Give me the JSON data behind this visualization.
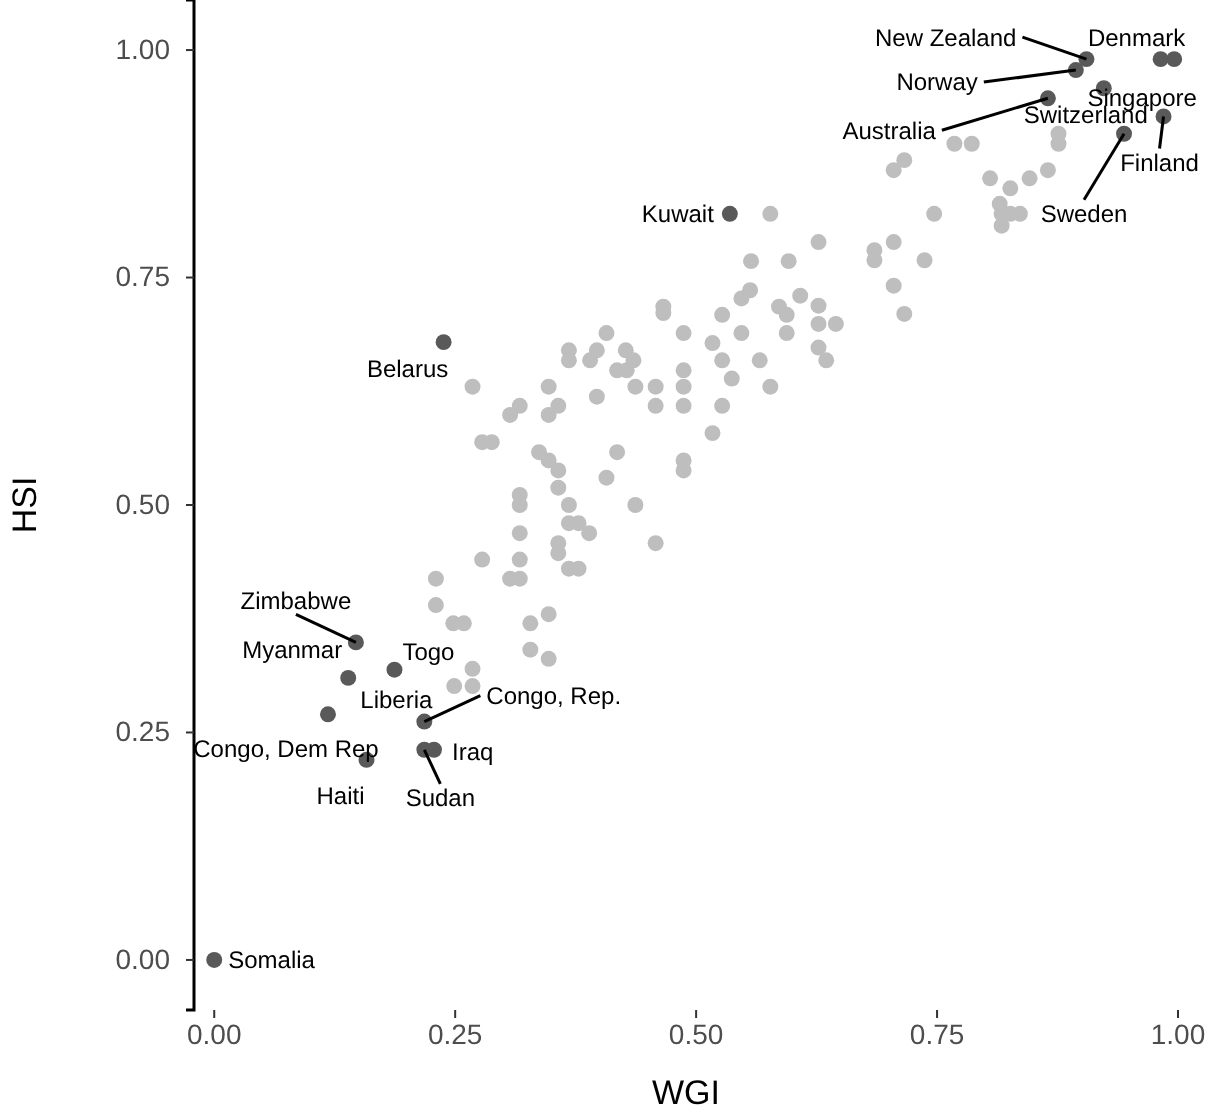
{
  "chart_data": {
    "type": "scatter",
    "xlabel": "WGI",
    "ylabel": "HSI",
    "xlim": [
      -0.021,
      1
    ],
    "ylim": [
      -0.055,
      1.055
    ],
    "xticks": [
      {
        "value": 0,
        "label": "0.00"
      },
      {
        "value": 0.25,
        "label": "0.25"
      },
      {
        "value": 0.5,
        "label": "0.50"
      },
      {
        "value": 0.75,
        "label": "0.75"
      },
      {
        "value": 1,
        "label": "1.00"
      }
    ],
    "yticks": [
      {
        "value": 0,
        "label": "0.00"
      },
      {
        "value": 0.25,
        "label": "0.25"
      },
      {
        "value": 0.5,
        "label": "0.50"
      },
      {
        "value": 0.75,
        "label": "0.75"
      },
      {
        "value": 1,
        "label": "1.00"
      }
    ],
    "grid": false,
    "marker": "circle",
    "series": [
      {
        "color": "#bebebe",
        "x": [
          0.557,
          0.596,
          0.556,
          0.547,
          0.466,
          0.466,
          0.586,
          0.594,
          0.527,
          0.407,
          0.487,
          0.517,
          0.547,
          0.594,
          0.368,
          0.368,
          0.397,
          0.39,
          0.427,
          0.435,
          0.418,
          0.428,
          0.527,
          0.566,
          0.487,
          0.537,
          0.268,
          0.347,
          0.437,
          0.458,
          0.487,
          0.577,
          0.317,
          0.307,
          0.357,
          0.347,
          0.397,
          0.458,
          0.487,
          0.527,
          0.278,
          0.288,
          0.517,
          0.337,
          0.347,
          0.357,
          0.418,
          0.487,
          0.487,
          0.317,
          0.317,
          0.357,
          0.407,
          0.368,
          0.437,
          0.368,
          0.378,
          0.389,
          0.317,
          0.357,
          0.357,
          0.458,
          0.278,
          0.317,
          0.307,
          0.317,
          0.368,
          0.378,
          0.23,
          0.23,
          0.248,
          0.259,
          0.328,
          0.347,
          0.328,
          0.347,
          0.268,
          0.249,
          0.268,
          0.768,
          0.786,
          0.876,
          0.876,
          0.716,
          0.705,
          0.805,
          0.826,
          0.846,
          0.865,
          0.815,
          0.817,
          0.826,
          0.836,
          0.817,
          0.747,
          0.577,
          0.627,
          0.685,
          0.685,
          0.705,
          0.737,
          0.705,
          0.716,
          0.608,
          0.627,
          0.627,
          0.645,
          0.627,
          0.635
        ],
        "values": [
          0.768,
          0.768,
          0.736,
          0.727,
          0.718,
          0.711,
          0.718,
          0.709,
          0.709,
          0.689,
          0.689,
          0.678,
          0.689,
          0.689,
          0.67,
          0.659,
          0.67,
          0.659,
          0.67,
          0.659,
          0.648,
          0.648,
          0.659,
          0.659,
          0.648,
          0.639,
          0.63,
          0.63,
          0.63,
          0.63,
          0.63,
          0.63,
          0.609,
          0.599,
          0.609,
          0.599,
          0.619,
          0.609,
          0.609,
          0.609,
          0.569,
          0.569,
          0.579,
          0.558,
          0.549,
          0.538,
          0.558,
          0.549,
          0.538,
          0.511,
          0.5,
          0.519,
          0.53,
          0.5,
          0.5,
          0.48,
          0.48,
          0.469,
          0.469,
          0.458,
          0.447,
          0.458,
          0.44,
          0.44,
          0.419,
          0.419,
          0.43,
          0.43,
          0.419,
          0.39,
          0.37,
          0.37,
          0.37,
          0.38,
          0.341,
          0.331,
          0.32,
          0.301,
          0.301,
          0.897,
          0.897,
          0.908,
          0.897,
          0.879,
          0.868,
          0.859,
          0.848,
          0.859,
          0.868,
          0.831,
          0.82,
          0.82,
          0.82,
          0.807,
          0.82,
          0.82,
          0.789,
          0.78,
          0.769,
          0.789,
          0.769,
          0.741,
          0.71,
          0.73,
          0.719,
          0.699,
          0.699,
          0.673,
          0.659
        ]
      },
      {
        "color": "#595959",
        "x": [
          0.905,
          0.982,
          0.996,
          0.894,
          0.923,
          0.865,
          0.985,
          0.944,
          0.535,
          0.238,
          0.147,
          0.187,
          0.139,
          0.118,
          0.218,
          0.218,
          0.228,
          0.158,
          0
        ],
        "values": [
          0.99,
          0.99,
          0.99,
          0.978,
          0.958,
          0.947,
          0.927,
          0.908,
          0.82,
          0.679,
          0.349,
          0.319,
          0.31,
          0.27,
          0.262,
          0.231,
          0.231,
          0.22,
          0
        ]
      }
    ],
    "annotations": [
      {
        "text": "New Zealand",
        "x": 0.905,
        "y": 0.99
      },
      {
        "text": "Denmark",
        "x": 0.982,
        "y": 0.99
      },
      {
        "text": "Singapore",
        "x": 0.996,
        "y": 0.99
      },
      {
        "text": "Norway",
        "x": 0.894,
        "y": 0.978
      },
      {
        "text": "Switzerland",
        "x": 0.923,
        "y": 0.958
      },
      {
        "text": "Australia",
        "x": 0.865,
        "y": 0.947
      },
      {
        "text": "Finland",
        "x": 0.985,
        "y": 0.927
      },
      {
        "text": "Sweden",
        "x": 0.944,
        "y": 0.908
      },
      {
        "text": "Kuwait",
        "x": 0.535,
        "y": 0.82
      },
      {
        "text": "Belarus",
        "x": 0.238,
        "y": 0.679
      },
      {
        "text": "Zimbabwe",
        "x": 0.147,
        "y": 0.349
      },
      {
        "text": "Togo",
        "x": 0.187,
        "y": 0.319
      },
      {
        "text": "Myanmar",
        "x": 0.139,
        "y": 0.31
      },
      {
        "text": "Congo, Dem Rep",
        "x": 0.118,
        "y": 0.27
      },
      {
        "text": "Liberia",
        "x": 0.218,
        "y": 0.262
      },
      {
        "text": "Congo, Rep.",
        "x": 0.218,
        "y": 0.262
      },
      {
        "text": "Sudan",
        "x": 0.218,
        "y": 0.231
      },
      {
        "text": "Iraq",
        "x": 0.228,
        "y": 0.231
      },
      {
        "text": "Haiti",
        "x": 0.158,
        "y": 0.22
      },
      {
        "text": "Somalia",
        "x": 0,
        "y": 0
      }
    ]
  }
}
